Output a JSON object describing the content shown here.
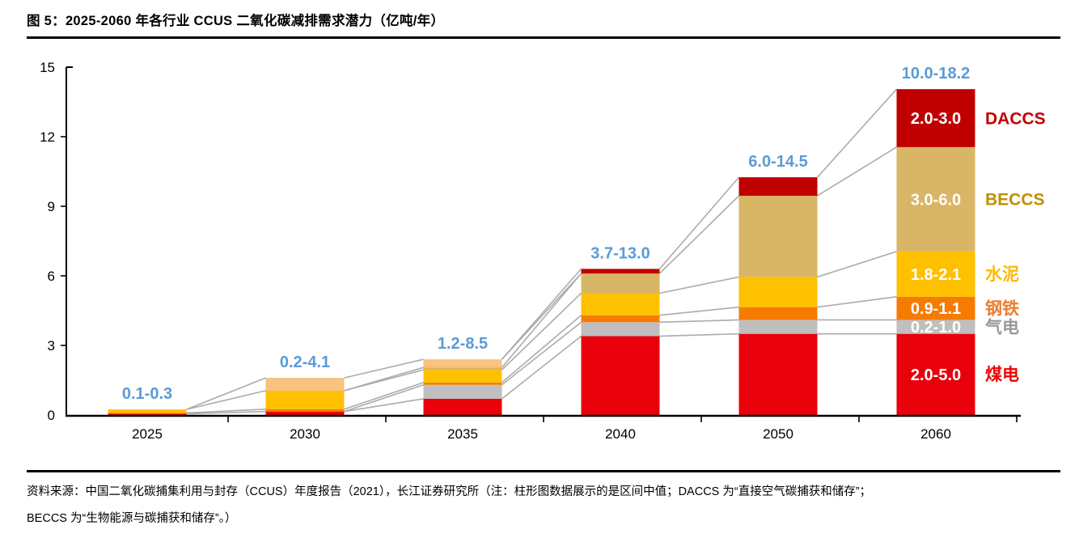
{
  "page": {
    "title": "图 5：2025-2060 年各行业 CCUS 二氧化碳减排需求潜力（亿吨/年）",
    "source_note_line1": "资料来源：中国二氧化碳捕集利用与封存（CCUS）年度报告（2021），长江证券研究所（注：柱形图数据展示的是区间中值；DACCS 为“直接空气碳捕获和储存”；",
    "source_note_line2": "BECCS 为“生物能源与碳捕获和储存”。）"
  },
  "chart_data": {
    "type": "bar",
    "stacked": true,
    "title": "图 5：2025-2060 年各行业 CCUS 二氧化碳减排需求潜力（亿吨/年）",
    "xlabel": "",
    "ylabel": "",
    "ylim": [
      0,
      15
    ],
    "y_ticks": [
      0,
      3,
      6,
      9,
      12,
      15
    ],
    "grid": false,
    "legend_position": "right",
    "categories": [
      "2025",
      "2030",
      "2035",
      "2040",
      "2050",
      "2060"
    ],
    "series": [
      {
        "name": "煤电",
        "color": "#E8000B",
        "legend_color": "#F40000",
        "range_label_2060": "2.0-5.0",
        "values": [
          0.05,
          0.15,
          0.7,
          3.4,
          3.5,
          3.5
        ]
      },
      {
        "name": "气电",
        "color": "#BFBFBF",
        "legend_color": "#989898",
        "range_label_2060": "0.2-1.0",
        "values": [
          0.0,
          0.0,
          0.6,
          0.6,
          0.6,
          0.6
        ]
      },
      {
        "name": "钢铁",
        "color": "#F57C00",
        "legend_color": "#ED7D31",
        "range_label_2060": "0.9-1.1",
        "values": [
          0.04,
          0.1,
          0.1,
          0.3,
          0.55,
          1.0
        ]
      },
      {
        "name": "水泥",
        "color": "#FFC000",
        "legend_color": "#FFB900",
        "range_label_2060": "1.8-2.1",
        "values": [
          0.15,
          0.8,
          0.55,
          0.95,
          1.3,
          1.95
        ]
      },
      {
        "name": "BECCS",
        "color": "#D9B566",
        "legend_color": "#BF9000",
        "range_label_2060": "3.0-6.0",
        "values": [
          0.0,
          0.0,
          0.1,
          0.85,
          3.5,
          4.5
        ]
      },
      {
        "name": "",
        "color": "#F9C27E",
        "legend_color": "",
        "range_label_2060": "",
        "values": [
          0.0,
          0.55,
          0.35,
          0.0,
          0.0,
          0.0
        ]
      },
      {
        "name": "DACCS",
        "color": "#C00000",
        "legend_color": "#C00000",
        "range_label_2060": "2.0-3.0",
        "values": [
          0.0,
          0.0,
          0.0,
          0.2,
          0.8,
          2.5
        ]
      }
    ],
    "bar_total_range_labels": {
      "color": "#5B9BD5",
      "values": [
        "0.1-0.3",
        "0.2-4.1",
        "1.2-8.5",
        "3.7-13.0",
        "6.0-14.5",
        "10.0-18.2"
      ]
    },
    "connector_line_color": "#ABABAB",
    "annotation": "柱形图数据展示的是区间中值"
  }
}
